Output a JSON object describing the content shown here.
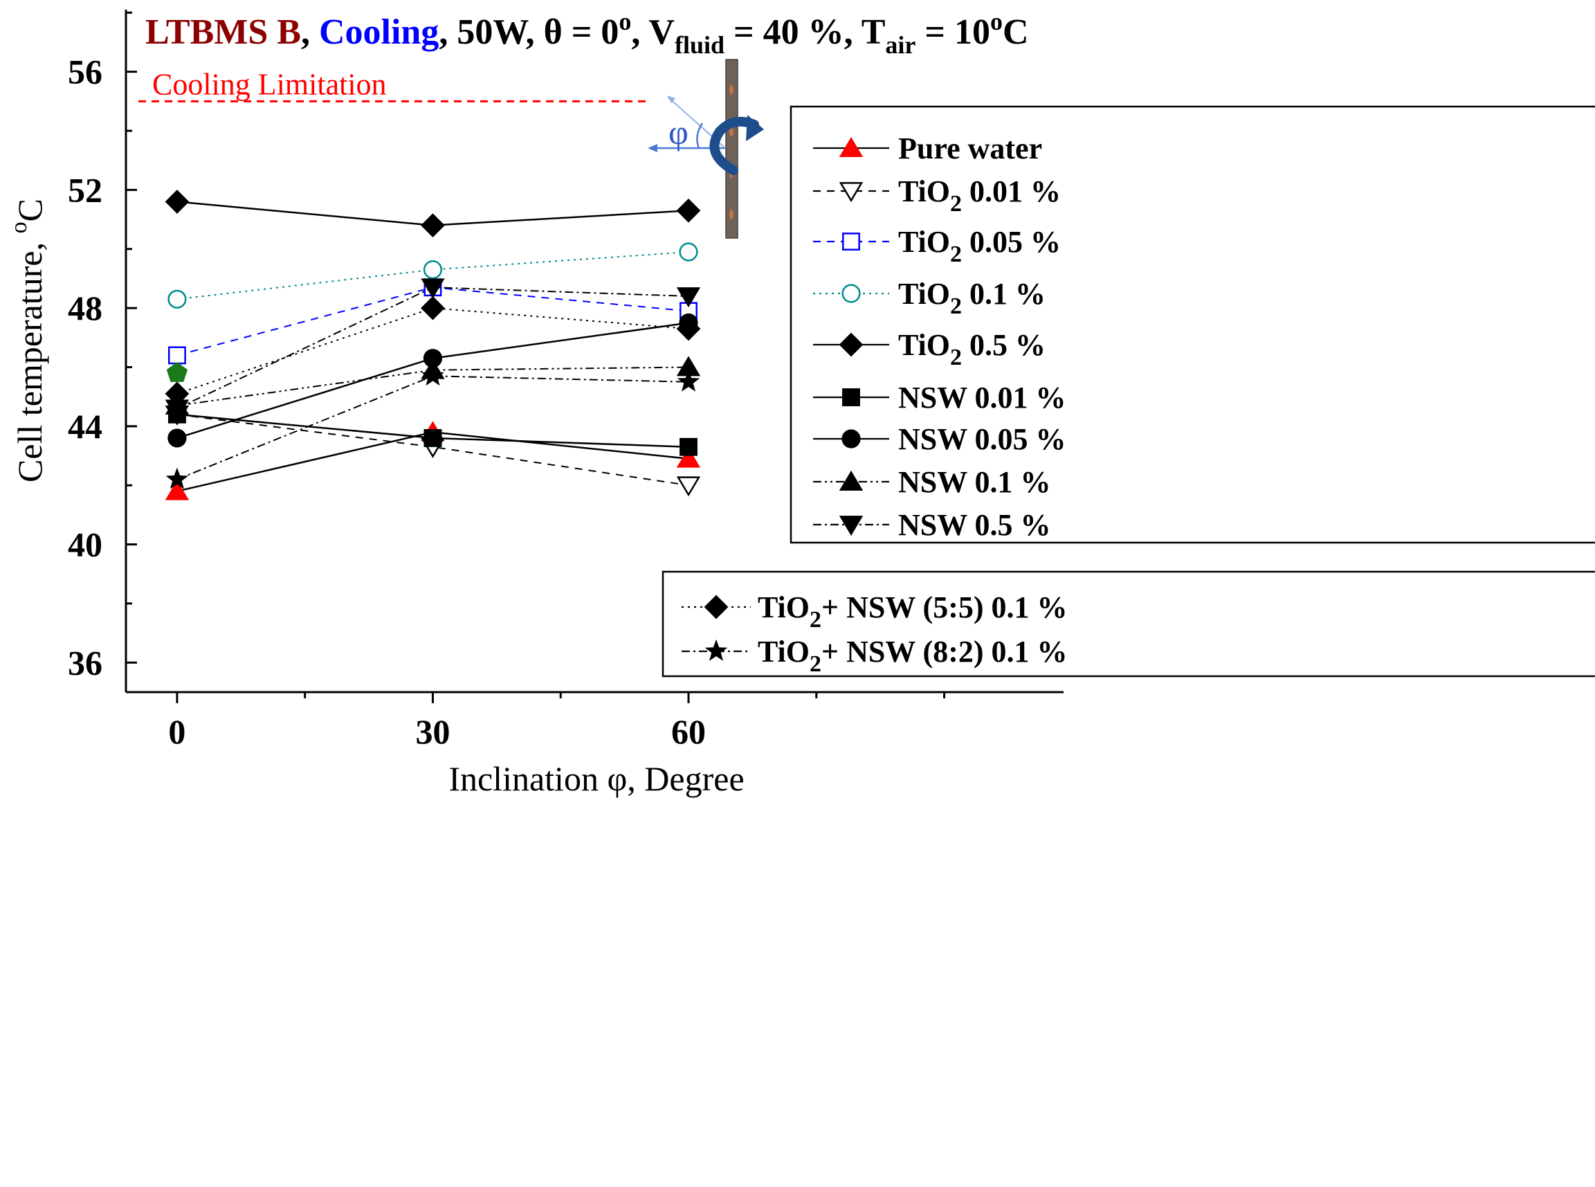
{
  "colors": {
    "axis": "#000000",
    "title_ltbms": "#8b0000",
    "title_cooling": "#0000ff",
    "limit": "#ff0000",
    "pure_water": "#ff0000",
    "tio2_005": "#0000ff",
    "tio2_01": "#008b8b",
    "green_point": "#1a7a1a",
    "inset_arrow": "#1e4d8c",
    "inset_plate": "#6e6258",
    "inset_dot": "#c8704a"
  },
  "chart_data": {
    "type": "line",
    "title": {
      "ltbms": "LTBMS B",
      "sep1": ",",
      "cooling": "Cooling",
      "rest_a": ", 50W, θ = 0",
      "deg_sup": "o",
      "rest_b": ", V",
      "fluid_sub": "fluid",
      "rest_c": " = 40 %, T",
      "air_sub": "air",
      "rest_d": " = 10",
      "deg_sup2": "o",
      "rest_e": "C"
    },
    "xlabel": "Inclination φ, Degree",
    "ylabel": "Cell temperature, ",
    "ylabel_unit_sup": "o",
    "ylabel_unit": "C",
    "x_ticks": [
      0,
      30,
      60
    ],
    "y_ticks": [
      36,
      40,
      44,
      48,
      52,
      56
    ],
    "xlim": [
      -6,
      104
    ],
    "ylim": [
      35,
      58.1
    ],
    "limit_line": {
      "value": 55,
      "x_end": 55,
      "label": "Cooling Limitation"
    },
    "inset_label": "φ",
    "extra_point": {
      "x": 0,
      "y": 45.8,
      "marker": "pentagon"
    },
    "series": [
      {
        "name": "Pure water",
        "label_main": "Pure water",
        "label_sub": "",
        "label_rest": "",
        "marker": "triangle-up",
        "fill": "red",
        "dash": "solid",
        "color": "black",
        "x": [
          0,
          30,
          60
        ],
        "y": [
          41.8,
          43.8,
          42.9
        ]
      },
      {
        "name": "TiO2 0.01 %",
        "label_main": "TiO",
        "label_sub": "2",
        "label_rest": " 0.01 %",
        "marker": "triangle-down",
        "fill": "none",
        "dash": "dash",
        "color": "black",
        "x": [
          0,
          30,
          60
        ],
        "y": [
          44.4,
          43.3,
          42.0
        ]
      },
      {
        "name": "TiO2 0.05 %",
        "label_main": "TiO",
        "label_sub": "2",
        "label_rest": " 0.05 %",
        "marker": "square",
        "fill": "none",
        "dash": "dash",
        "color": "blue",
        "x": [
          0,
          30,
          60
        ],
        "y": [
          46.4,
          48.7,
          47.9
        ]
      },
      {
        "name": "TiO2 0.1 %",
        "label_main": "TiO",
        "label_sub": "2",
        "label_rest": " 0.1 %",
        "marker": "circle",
        "fill": "none",
        "dash": "dot",
        "color": "teal",
        "x": [
          0,
          30,
          60
        ],
        "y": [
          48.3,
          49.3,
          49.9
        ]
      },
      {
        "name": "TiO2 0.5 %",
        "label_main": "TiO",
        "label_sub": "2",
        "label_rest": " 0.5 %",
        "marker": "diamond",
        "fill": "black",
        "dash": "solid",
        "color": "black",
        "x": [
          0,
          30,
          60
        ],
        "y": [
          51.6,
          50.8,
          51.3
        ]
      },
      {
        "name": "NSW 0.01 %",
        "label_main": "NSW 0.01 %",
        "label_sub": "",
        "label_rest": "",
        "marker": "square",
        "fill": "black",
        "dash": "solid",
        "color": "black",
        "x": [
          0,
          30,
          60
        ],
        "y": [
          44.4,
          43.6,
          43.3
        ]
      },
      {
        "name": "NSW 0.05 %",
        "label_main": "NSW 0.05 %",
        "label_sub": "",
        "label_rest": "",
        "marker": "circle",
        "fill": "black",
        "dash": "solid",
        "color": "black",
        "x": [
          0,
          30,
          60
        ],
        "y": [
          43.6,
          46.3,
          47.5
        ]
      },
      {
        "name": "NSW 0.1 %",
        "label_main": "NSW 0.1 %",
        "label_sub": "",
        "label_rest": "",
        "marker": "triangle-up",
        "fill": "black",
        "dash": "dashdotdot",
        "color": "black",
        "x": [
          0,
          30,
          60
        ],
        "y": [
          44.7,
          45.9,
          46.0
        ]
      },
      {
        "name": "NSW 0.5 %",
        "label_main": "NSW 0.5 %",
        "label_sub": "",
        "label_rest": "",
        "marker": "triangle-down",
        "fill": "black",
        "dash": "dashdot",
        "color": "black",
        "x": [
          0,
          30,
          60
        ],
        "y": [
          44.6,
          48.7,
          48.4
        ]
      },
      {
        "name": "TiO2+ NSW (5:5) 0.1 %",
        "label_main": "TiO",
        "label_sub": "2",
        "label_rest": "+ NSW (5:5) 0.1 %",
        "marker": "diamond",
        "fill": "black",
        "dash": "dot",
        "color": "black",
        "x": [
          0,
          30,
          60
        ],
        "y": [
          45.1,
          48.0,
          47.3
        ]
      },
      {
        "name": "TiO2+ NSW (8:2) 0.1 %",
        "label_main": "TiO",
        "label_sub": "2",
        "label_rest": "+ NSW (8:2) 0.1 %",
        "marker": "star",
        "fill": "black",
        "dash": "dashdot",
        "color": "black",
        "x": [
          0,
          30,
          60
        ],
        "y": [
          42.2,
          45.7,
          45.5
        ]
      }
    ],
    "legend_main": [
      "Pure water",
      "TiO2 0.01 %",
      "TiO2 0.05 %",
      "TiO2 0.1 %",
      "TiO2 0.5 %",
      "NSW 0.01 %",
      "NSW 0.05 %",
      "NSW 0.1 %",
      "NSW 0.5 %"
    ],
    "legend_second": [
      "TiO2+ NSW (5:5) 0.1 %",
      "TiO2+ NSW (8:2) 0.1 %"
    ],
    "legend_placement": "right"
  }
}
